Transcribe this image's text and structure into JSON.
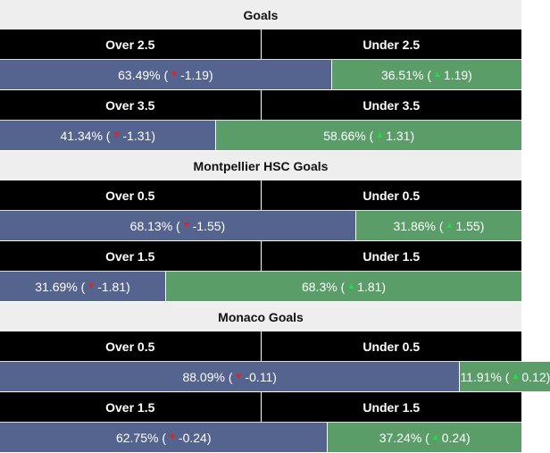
{
  "colors": {
    "over_bg": "#55648e",
    "under_bg": "#5a9d68",
    "header_bg": "#000000",
    "title_bg": "#eeeeee",
    "down_arrow": "#e52222",
    "up_arrow": "#22dd44"
  },
  "sections": [
    {
      "title": "Goals",
      "markets": [
        {
          "over_label": "Over 2.5",
          "under_label": "Under 2.5",
          "over_pct_text": "63.49%",
          "over_change": "-1.19",
          "under_pct_text": "36.51%",
          "under_change": "1.19",
          "over_fraction": 0.6349
        },
        {
          "over_label": "Over 3.5",
          "under_label": "Under 3.5",
          "over_pct_text": "41.34%",
          "over_change": "-1.31",
          "under_pct_text": "58.66%",
          "under_change": "1.31",
          "over_fraction": 0.4134
        }
      ]
    },
    {
      "title": "Montpellier HSC Goals",
      "markets": [
        {
          "over_label": "Over 0.5",
          "under_label": "Under 0.5",
          "over_pct_text": "68.13%",
          "over_change": "-1.55",
          "under_pct_text": "31.86%",
          "under_change": "1.55",
          "over_fraction": 0.6813
        },
        {
          "over_label": "Over 1.5",
          "under_label": "Under 1.5",
          "over_pct_text": "31.69%",
          "over_change": "-1.81",
          "under_pct_text": "68.3%",
          "under_change": "1.81",
          "over_fraction": 0.3169
        }
      ]
    },
    {
      "title": "Monaco Goals",
      "markets": [
        {
          "over_label": "Over 0.5",
          "under_label": "Under 0.5",
          "over_pct_text": "88.09%",
          "over_change": "-0.11",
          "under_pct_text": "11.91%",
          "under_change": "0.12",
          "over_fraction": 0.8809
        },
        {
          "over_label": "Over 1.5",
          "under_label": "Under 1.5",
          "over_pct_text": "62.75%",
          "over_change": "-0.24",
          "under_pct_text": "37.24%",
          "under_change": "0.24",
          "over_fraction": 0.6275
        }
      ]
    }
  ]
}
